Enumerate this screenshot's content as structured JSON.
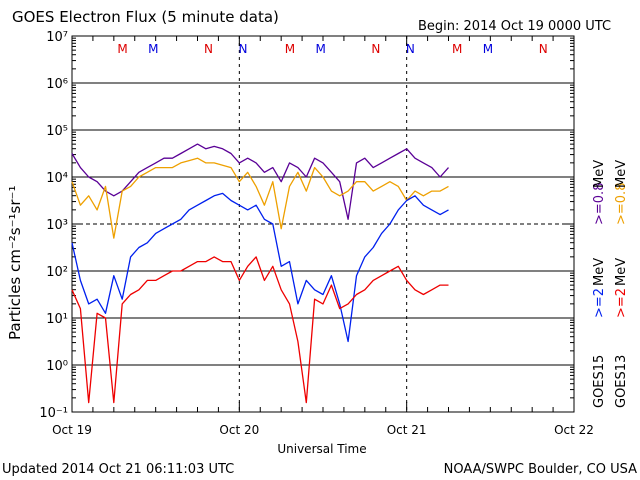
{
  "chart_data": {
    "type": "line",
    "title": "GOES Electron Flux (5 minute data)",
    "begin_label": "Begin: 2014 Oct 19 0000 UTC",
    "xlabel": "Universal Time",
    "ylabel": "Particles cm⁻²s⁻¹sr⁻¹",
    "yscale": "log",
    "ylim_exponent": [
      -1,
      7
    ],
    "ytick_labels": [
      "10⁻¹",
      "10⁰",
      "10¹",
      "10²",
      "10³",
      "10⁴",
      "10⁵",
      "10⁶",
      "10⁷"
    ],
    "x_unit": "days since Oct 19 00:00 UTC",
    "xlim": [
      0,
      3
    ],
    "xtick_labels": [
      "Oct 19",
      "Oct 20",
      "Oct 21",
      "Oct 22"
    ],
    "reference_lines": [
      {
        "log10": 3,
        "style": "dashed"
      },
      {
        "log10": 4,
        "style": "solid"
      },
      {
        "log10": 5,
        "style": "solid"
      },
      {
        "log10": 6,
        "style": "solid"
      },
      {
        "log10": 2,
        "style": "solid"
      },
      {
        "log10": 1,
        "style": "solid"
      },
      {
        "log10": 0,
        "style": "solid"
      }
    ],
    "markers": [
      {
        "label": "M",
        "day": 0.302,
        "color": "#dd0000"
      },
      {
        "label": "M",
        "day": 0.486,
        "color": "#0000dd"
      },
      {
        "label": "N",
        "day": 0.816,
        "color": "#dd0000"
      },
      {
        "label": "N",
        "day": 1.022,
        "color": "#0000dd"
      },
      {
        "label": "M",
        "day": 1.302,
        "color": "#dd0000"
      },
      {
        "label": "M",
        "day": 1.486,
        "color": "#0000dd"
      },
      {
        "label": "N",
        "day": 1.816,
        "color": "#dd0000"
      },
      {
        "label": "N",
        "day": 2.022,
        "color": "#0000dd"
      },
      {
        "label": "M",
        "day": 2.302,
        "color": "#dd0000"
      },
      {
        "label": "M",
        "day": 2.486,
        "color": "#0000dd"
      },
      {
        "label": "N",
        "day": 2.816,
        "color": "#dd0000"
      },
      {
        "label": "N",
        "day": 3.022,
        "color": "#0000dd"
      }
    ],
    "series": [
      {
        "name": "GOES15 >=0.8 MeV",
        "color": "#5a0096",
        "x": [
          0,
          0.05,
          0.1,
          0.15,
          0.2,
          0.25,
          0.3,
          0.35,
          0.4,
          0.45,
          0.5,
          0.55,
          0.6,
          0.65,
          0.7,
          0.75,
          0.8,
          0.85,
          0.9,
          0.95,
          1.0,
          1.05,
          1.1,
          1.15,
          1.2,
          1.25,
          1.3,
          1.35,
          1.4,
          1.45,
          1.5,
          1.55,
          1.6,
          1.65,
          1.7,
          1.75,
          1.8,
          1.85,
          1.9,
          1.95,
          2.0,
          2.05,
          2.1,
          2.15,
          2.2,
          2.25
        ],
        "y": [
          4.5,
          4.2,
          4.0,
          3.9,
          3.7,
          3.6,
          3.7,
          3.9,
          4.1,
          4.2,
          4.3,
          4.4,
          4.4,
          4.5,
          4.6,
          4.7,
          4.6,
          4.65,
          4.6,
          4.5,
          4.3,
          4.4,
          4.3,
          4.1,
          4.2,
          3.9,
          4.3,
          4.2,
          4.0,
          4.4,
          4.3,
          4.1,
          3.9,
          3.1,
          4.3,
          4.4,
          4.2,
          4.3,
          4.4,
          4.5,
          4.6,
          4.4,
          4.3,
          4.2,
          4.0,
          4.2
        ]
      },
      {
        "name": "GOES13 >=0.8 MeV",
        "color": "#eea000",
        "x": [
          0,
          0.05,
          0.1,
          0.15,
          0.2,
          0.25,
          0.3,
          0.35,
          0.4,
          0.45,
          0.5,
          0.55,
          0.6,
          0.65,
          0.7,
          0.75,
          0.8,
          0.85,
          0.9,
          0.95,
          1.0,
          1.05,
          1.1,
          1.15,
          1.2,
          1.25,
          1.3,
          1.35,
          1.4,
          1.45,
          1.5,
          1.55,
          1.6,
          1.65,
          1.7,
          1.75,
          1.8,
          1.85,
          1.9,
          1.95,
          2.0,
          2.05,
          2.1,
          2.15,
          2.2,
          2.25
        ],
        "y": [
          3.9,
          3.4,
          3.6,
          3.3,
          3.8,
          2.7,
          3.7,
          3.8,
          4.0,
          4.1,
          4.2,
          4.2,
          4.2,
          4.3,
          4.35,
          4.4,
          4.3,
          4.3,
          4.25,
          4.2,
          3.9,
          4.1,
          3.8,
          3.4,
          3.9,
          2.9,
          3.8,
          4.1,
          3.7,
          4.2,
          4.0,
          3.7,
          3.6,
          3.7,
          3.9,
          3.9,
          3.7,
          3.8,
          3.9,
          3.8,
          3.5,
          3.7,
          3.6,
          3.7,
          3.7,
          3.8
        ]
      },
      {
        "name": "GOES15 >=2 MeV",
        "color": "#0020ee",
        "x": [
          0,
          0.05,
          0.1,
          0.15,
          0.2,
          0.25,
          0.3,
          0.35,
          0.4,
          0.45,
          0.5,
          0.55,
          0.6,
          0.65,
          0.7,
          0.75,
          0.8,
          0.85,
          0.9,
          0.95,
          1.0,
          1.05,
          1.1,
          1.15,
          1.2,
          1.25,
          1.3,
          1.35,
          1.4,
          1.45,
          1.5,
          1.55,
          1.6,
          1.65,
          1.7,
          1.75,
          1.8,
          1.85,
          1.9,
          1.95,
          2.0,
          2.05,
          2.1,
          2.15,
          2.2,
          2.25
        ],
        "y": [
          2.6,
          1.8,
          1.3,
          1.4,
          1.1,
          1.9,
          1.4,
          2.3,
          2.5,
          2.6,
          2.8,
          2.9,
          3.0,
          3.1,
          3.3,
          3.4,
          3.5,
          3.6,
          3.65,
          3.5,
          3.4,
          3.3,
          3.4,
          3.1,
          3.0,
          2.1,
          2.2,
          1.3,
          1.8,
          1.6,
          1.5,
          1.9,
          1.3,
          0.5,
          1.9,
          2.3,
          2.5,
          2.8,
          3.0,
          3.3,
          3.5,
          3.6,
          3.4,
          3.3,
          3.2,
          3.3
        ]
      },
      {
        "name": "GOES13 >=2 MeV",
        "color": "#ee0000",
        "x": [
          0,
          0.05,
          0.1,
          0.15,
          0.2,
          0.25,
          0.3,
          0.35,
          0.4,
          0.45,
          0.5,
          0.55,
          0.6,
          0.65,
          0.7,
          0.75,
          0.8,
          0.85,
          0.9,
          0.95,
          1.0,
          1.05,
          1.1,
          1.15,
          1.2,
          1.25,
          1.3,
          1.35,
          1.4,
          1.45,
          1.5,
          1.55,
          1.6,
          1.65,
          1.7,
          1.75,
          1.8,
          1.85,
          1.9,
          1.95,
          2.0,
          2.05,
          2.1,
          2.15,
          2.2,
          2.25
        ],
        "y": [
          1.6,
          1.2,
          -0.8,
          1.1,
          1.0,
          -0.8,
          1.3,
          1.5,
          1.6,
          1.8,
          1.8,
          1.9,
          2.0,
          2.0,
          2.1,
          2.2,
          2.2,
          2.3,
          2.2,
          2.2,
          1.8,
          2.1,
          2.3,
          1.8,
          2.1,
          1.6,
          1.3,
          0.5,
          -0.8,
          1.4,
          1.3,
          1.7,
          1.2,
          1.3,
          1.5,
          1.6,
          1.8,
          1.9,
          2.0,
          2.1,
          1.8,
          1.6,
          1.5,
          1.6,
          1.7,
          1.7
        ]
      }
    ],
    "right_labels": {
      "top_purple": ">=0.8",
      "top_orange": ">=0.8",
      "top_unit": "MeV",
      "bot_blue": ">=2",
      "bot_red": ">=2",
      "bot_unit": "MeV",
      "sat1": "GOES15",
      "sat2": "GOES13"
    },
    "footer_left": "Updated 2014 Oct 21 06:11:03 UTC",
    "footer_right": "NOAA/SWPC Boulder, CO USA"
  }
}
